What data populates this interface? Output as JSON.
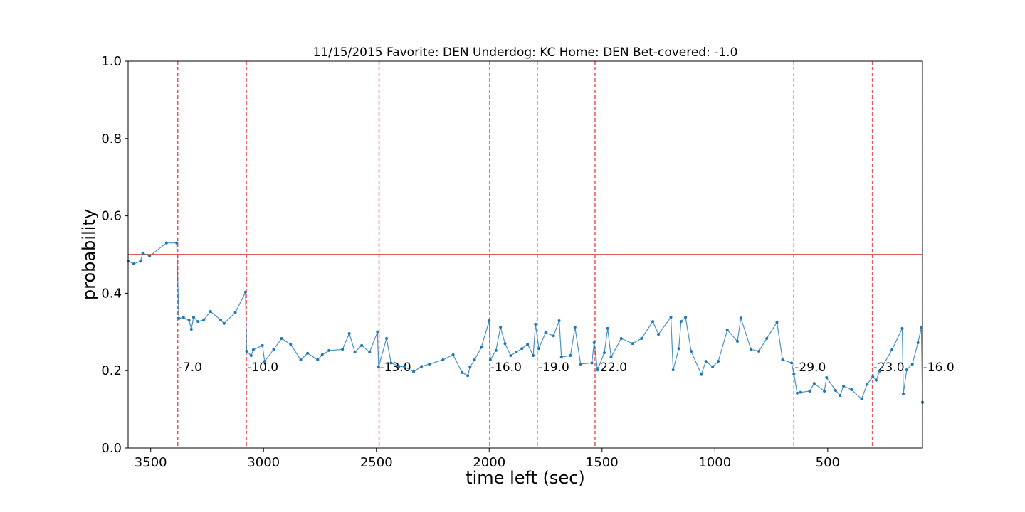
{
  "chart_data": {
    "type": "line",
    "title": "11/15/2015 Favorite: DEN Underdog: KC Home: DEN Bet-covered: -1.0",
    "xlabel": "time left (sec)",
    "ylabel": "probability",
    "x": [
      3600,
      3575,
      3545,
      3535,
      3505,
      3430,
      3385,
      3375,
      3355,
      3330,
      3320,
      3310,
      3290,
      3265,
      3235,
      3190,
      3175,
      3125,
      3080,
      3075,
      3055,
      3045,
      3005,
      2995,
      2955,
      2920,
      2880,
      2835,
      2805,
      2760,
      2740,
      2710,
      2650,
      2620,
      2595,
      2565,
      2530,
      2495,
      2490,
      2455,
      2435,
      2400,
      2375,
      2335,
      2300,
      2265,
      2205,
      2160,
      2120,
      2095,
      2085,
      2065,
      2035,
      2000,
      1995,
      1970,
      1950,
      1930,
      1905,
      1880,
      1855,
      1830,
      1805,
      1795,
      1780,
      1750,
      1715,
      1690,
      1680,
      1640,
      1620,
      1595,
      1545,
      1535,
      1520,
      1490,
      1475,
      1460,
      1415,
      1365,
      1325,
      1275,
      1250,
      1195,
      1185,
      1160,
      1150,
      1130,
      1105,
      1060,
      1040,
      1010,
      985,
      945,
      900,
      885,
      840,
      805,
      770,
      725,
      700,
      660,
      650,
      635,
      620,
      580,
      560,
      515,
      505,
      465,
      445,
      430,
      395,
      350,
      325,
      300,
      285,
      270,
      215,
      170,
      165,
      150,
      125,
      100,
      85,
      80
    ],
    "series": [
      {
        "color": "#1f77b4",
        "values": [
          0.483,
          0.476,
          0.483,
          0.504,
          0.496,
          0.53,
          0.53,
          0.335,
          0.338,
          0.33,
          0.307,
          0.338,
          0.327,
          0.331,
          0.353,
          0.331,
          0.322,
          0.35,
          0.403,
          0.25,
          0.239,
          0.254,
          0.265,
          0.224,
          0.255,
          0.283,
          0.268,
          0.228,
          0.245,
          0.228,
          0.241,
          0.252,
          0.255,
          0.296,
          0.248,
          0.265,
          0.248,
          0.3,
          0.21,
          0.283,
          0.22,
          0.211,
          0.21,
          0.197,
          0.211,
          0.217,
          0.228,
          0.241,
          0.195,
          0.187,
          0.21,
          0.228,
          0.26,
          0.329,
          0.228,
          0.252,
          0.312,
          0.27,
          0.239,
          0.248,
          0.257,
          0.268,
          0.239,
          0.32,
          0.257,
          0.298,
          0.29,
          0.329,
          0.235,
          0.239,
          0.312,
          0.217,
          0.22,
          0.272,
          0.202,
          0.246,
          0.309,
          0.235,
          0.283,
          0.27,
          0.283,
          0.327,
          0.294,
          0.338,
          0.202,
          0.257,
          0.327,
          0.338,
          0.25,
          0.19,
          0.224,
          0.21,
          0.224,
          0.305,
          0.276,
          0.336,
          0.255,
          0.25,
          0.283,
          0.325,
          0.228,
          0.22,
          0.191,
          0.142,
          0.144,
          0.147,
          0.167,
          0.147,
          0.182,
          0.149,
          0.136,
          0.16,
          0.151,
          0.127,
          0.165,
          0.184,
          0.175,
          0.199,
          0.254,
          0.309,
          0.14,
          0.202,
          0.217,
          0.272,
          0.311,
          0.118
        ]
      }
    ],
    "hline": {
      "value": 0.5,
      "color": "#d62728"
    },
    "vlines": {
      "color": "#e8585a",
      "items": [
        {
          "x": 3380,
          "label": "-7.0"
        },
        {
          "x": 3076,
          "label": "-10.0"
        },
        {
          "x": 2488,
          "label": "-13.0"
        },
        {
          "x": 1998,
          "label": "-16.0"
        },
        {
          "x": 1787,
          "label": "-19.0"
        },
        {
          "x": 1531,
          "label": "-22.0"
        },
        {
          "x": 650,
          "label": "-29.0"
        },
        {
          "x": 302,
          "label": "-23.0"
        },
        {
          "x": 81,
          "label": "-16.0"
        }
      ]
    },
    "xlim": [
      3600,
      80
    ],
    "xticks": [
      3500,
      3000,
      2500,
      2000,
      1500,
      1000,
      500
    ],
    "ylim": [
      0,
      1
    ],
    "yticks": [
      {
        "value": 0,
        "label": "0.0"
      },
      0.2,
      0.4,
      0.6,
      0.8,
      {
        "value": 1,
        "label": "1.0"
      }
    ]
  }
}
